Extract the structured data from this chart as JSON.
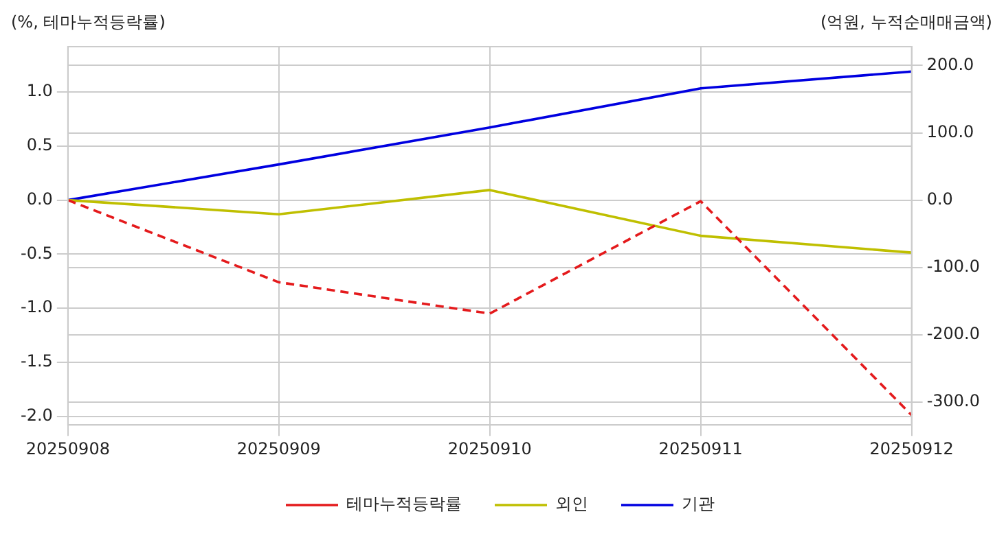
{
  "chart_data": {
    "type": "line",
    "ylabel": "(%, 테마누적등락률)",
    "y2label": "(억원, 누적순매매금액)",
    "categories": [
      "20250908",
      "20250909",
      "20250910",
      "20250911",
      "20250912"
    ],
    "series": [
      {
        "name": "테마누적등락률",
        "color": "#e41a1c",
        "line_style": "dashed",
        "values": [
          0,
          -0.76,
          -1.05,
          -0.01,
          -1.99
        ]
      },
      {
        "name": "외인",
        "color": "#bfbf00",
        "axis": "y2",
        "values": [
          0,
          -21,
          15,
          -53,
          -78
        ]
      },
      {
        "name": "기관",
        "color": "#0000e0",
        "axis": "y2",
        "values": [
          0,
          53,
          108,
          166,
          191
        ]
      }
    ],
    "ylim": [
      -2.08,
      1.42
    ],
    "yticks": [
      {
        "value": -2,
        "label": "-2.0"
      },
      {
        "value": -1.5,
        "label": "-1.5"
      },
      {
        "value": -1,
        "label": "-1.0"
      },
      {
        "value": -0.5,
        "label": "-0.5"
      },
      {
        "value": 0,
        "label": "0.0"
      },
      {
        "value": 0.5,
        "label": "0.5"
      },
      {
        "value": 1,
        "label": "1.0"
      }
    ],
    "y2lim": [
      -334,
      228
    ],
    "y2ticks": [
      {
        "value": -300,
        "label": "-300.0"
      },
      {
        "value": -200,
        "label": "-200.0"
      },
      {
        "value": -100,
        "label": "-100.0"
      },
      {
        "value": 0,
        "label": "0.0"
      },
      {
        "value": 100,
        "label": "100.0"
      },
      {
        "value": 200,
        "label": "200.0"
      }
    ],
    "grid": true,
    "legend": "bottom",
    "marker": "none"
  }
}
